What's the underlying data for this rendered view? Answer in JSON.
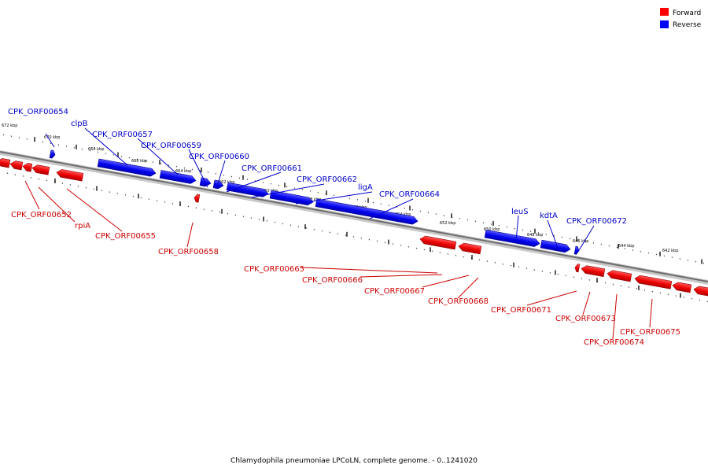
{
  "legend": [
    {
      "label": "Forward",
      "color": "#ff0000"
    },
    {
      "label": "Reverse",
      "color": "#0000ff"
    }
  ],
  "caption": "Chlamydophila pneumoniae LPCoLN, complete genome. - 0..1241020",
  "scale_ticks": [
    "672 kbp",
    "670 kbp",
    "668 kbp",
    "666 kbp",
    "664 kbp",
    "662 kbp",
    "660 kbp",
    "658 kbp",
    "656 kbp",
    "654 kbp",
    "652 kbp",
    "650 kbp",
    "648 kbp",
    "646 kbp",
    "644 kbp",
    "642 kbp"
  ],
  "forward_genes": [
    "CPK_ORF00652",
    "rpiA",
    "CPK_ORF00655",
    "CPK_ORF00658",
    "CPK_ORF00665",
    "CPK_ORF00666",
    "CPK_ORF00667",
    "CPK_ORF00668",
    "CPK_ORF00671",
    "CPK_ORF00673",
    "CPK_ORF00674",
    "CPK_ORF00675"
  ],
  "reverse_genes": [
    "CPK_ORF00654",
    "clpB",
    "CPK_ORF00657",
    "CPK_ORF00659",
    "CPK_ORF00660",
    "CPK_ORF00661",
    "CPK_ORF00662",
    "ligA",
    "CPK_ORF00664",
    "leuS",
    "kdtA",
    "CPK_ORF00672"
  ]
}
